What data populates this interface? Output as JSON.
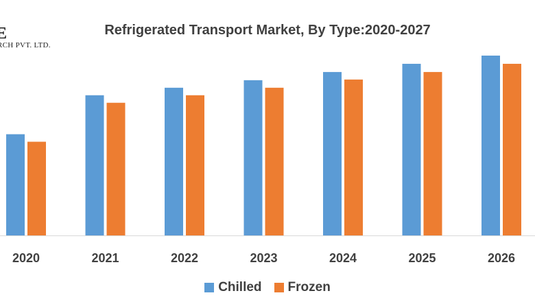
{
  "logo": {
    "line1": "E",
    "line2": "RCH PVT. LTD."
  },
  "chart_data": {
    "type": "bar",
    "title": "Refrigerated Transport Market, By Type:2020-2027",
    "xlabel": "",
    "ylabel": "",
    "categories": [
      "2020",
      "2021",
      "2022",
      "2023",
      "2024",
      "2025",
      "2026"
    ],
    "series": [
      {
        "name": "Chilled",
        "color": "#5B9BD5",
        "values": [
          148,
          205,
          216,
          227,
          239,
          251,
          263
        ]
      },
      {
        "name": "Frozen",
        "color": "#ED7D31",
        "values": [
          137,
          194,
          205,
          216,
          228,
          239,
          251
        ]
      }
    ],
    "ylim": [
      0,
      263
    ],
    "grid": false,
    "legend_position": "bottom"
  }
}
